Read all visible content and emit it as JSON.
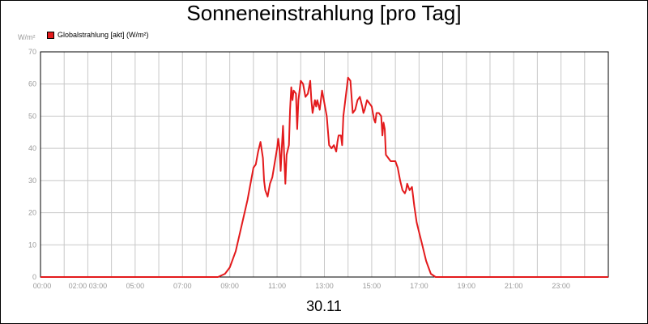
{
  "chart_data": {
    "type": "line",
    "title": "Sonneneinstrahlung [pro Tag]",
    "ylabel": "W/m²",
    "xlabel": "30.11",
    "ylim": [
      0,
      70
    ],
    "yticks": [
      0,
      10,
      20,
      30,
      40,
      50,
      60,
      70
    ],
    "xlim": [
      0,
      24
    ],
    "xtick_labels": [
      "00:00",
      "02:00 03:00",
      "05:00",
      "07:00",
      "09:00",
      "11:00",
      "13:00",
      "15:00",
      "17:00",
      "19:00",
      "21:00",
      "23:00"
    ],
    "grid": true,
    "legend_position": "top-left",
    "series": [
      {
        "name": "Globalstrahlung [akt] (W/m²)",
        "color": "#e31a1c",
        "x": [
          0,
          7.5,
          7.8,
          8.0,
          8.25,
          8.5,
          8.75,
          9.0,
          9.1,
          9.2,
          9.3,
          9.4,
          9.45,
          9.5,
          9.6,
          9.7,
          9.8,
          10.0,
          10.05,
          10.1,
          10.15,
          10.2,
          10.25,
          10.3,
          10.35,
          10.4,
          10.5,
          10.55,
          10.6,
          10.65,
          10.7,
          10.8,
          10.85,
          10.9,
          11.0,
          11.1,
          11.2,
          11.3,
          11.4,
          11.45,
          11.5,
          11.6,
          11.65,
          11.7,
          11.8,
          11.9,
          12.0,
          12.1,
          12.2,
          12.3,
          12.4,
          12.5,
          12.55,
          12.6,
          12.7,
          12.75,
          12.8,
          13.0,
          13.1,
          13.2,
          13.3,
          13.4,
          13.5,
          13.6,
          13.65,
          13.7,
          13.8,
          13.9,
          14.0,
          14.1,
          14.15,
          14.2,
          14.3,
          14.4,
          14.45,
          14.5,
          14.55,
          14.6,
          14.7,
          14.8,
          15.0,
          15.1,
          15.2,
          15.3,
          15.4,
          15.45,
          15.5,
          15.6,
          15.7,
          15.8,
          15.9,
          16.0,
          16.1,
          16.2,
          16.3,
          16.4,
          16.5,
          16.7,
          16.8,
          17.0,
          24
        ],
        "values": [
          0,
          0,
          1,
          3,
          8,
          16,
          24,
          34,
          35,
          39,
          42,
          37,
          30,
          27,
          25,
          29,
          31,
          40,
          43,
          40,
          33,
          40,
          47,
          38,
          29,
          38,
          41,
          52,
          59,
          55,
          58,
          57,
          46,
          55,
          61,
          60,
          56,
          57,
          61,
          55,
          51,
          55,
          53,
          55,
          52,
          58,
          54,
          50,
          41,
          40,
          41,
          39,
          42,
          44,
          44,
          41,
          50,
          62,
          61,
          51,
          52,
          55,
          56,
          53,
          51,
          52,
          55,
          54,
          53,
          49,
          48,
          51,
          51,
          50,
          44,
          48,
          46,
          38,
          37,
          36,
          36,
          34,
          30,
          27,
          26,
          27,
          29,
          27,
          28,
          22,
          17,
          14,
          11,
          8,
          5,
          3,
          1,
          0,
          0,
          0,
          0
        ]
      }
    ]
  }
}
